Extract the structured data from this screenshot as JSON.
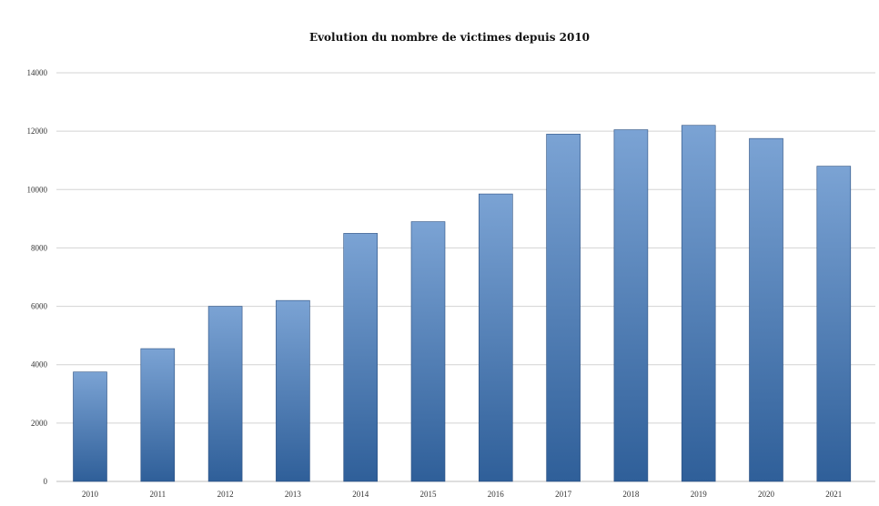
{
  "chart_data": {
    "type": "bar",
    "title": "Evolution du nombre de victimes depuis 2010",
    "xlabel": "",
    "ylabel": "",
    "categories": [
      "2010",
      "2011",
      "2012",
      "2013",
      "2014",
      "2015",
      "2016",
      "2017",
      "2018",
      "2019",
      "2020",
      "2021"
    ],
    "values": [
      3750,
      4550,
      6000,
      6200,
      8500,
      8900,
      9850,
      11900,
      12050,
      12200,
      11750,
      10800
    ],
    "ylim": [
      0,
      14000
    ],
    "yticks": [
      "0",
      "2000",
      "4000",
      "6000",
      "8000",
      "10000",
      "12000",
      "14000"
    ],
    "grid": true,
    "legend": "none",
    "colors": {
      "bar_top": "#7ba3d4",
      "bar_bottom": "#2f5f99",
      "grid": "#d3d3d3"
    }
  }
}
